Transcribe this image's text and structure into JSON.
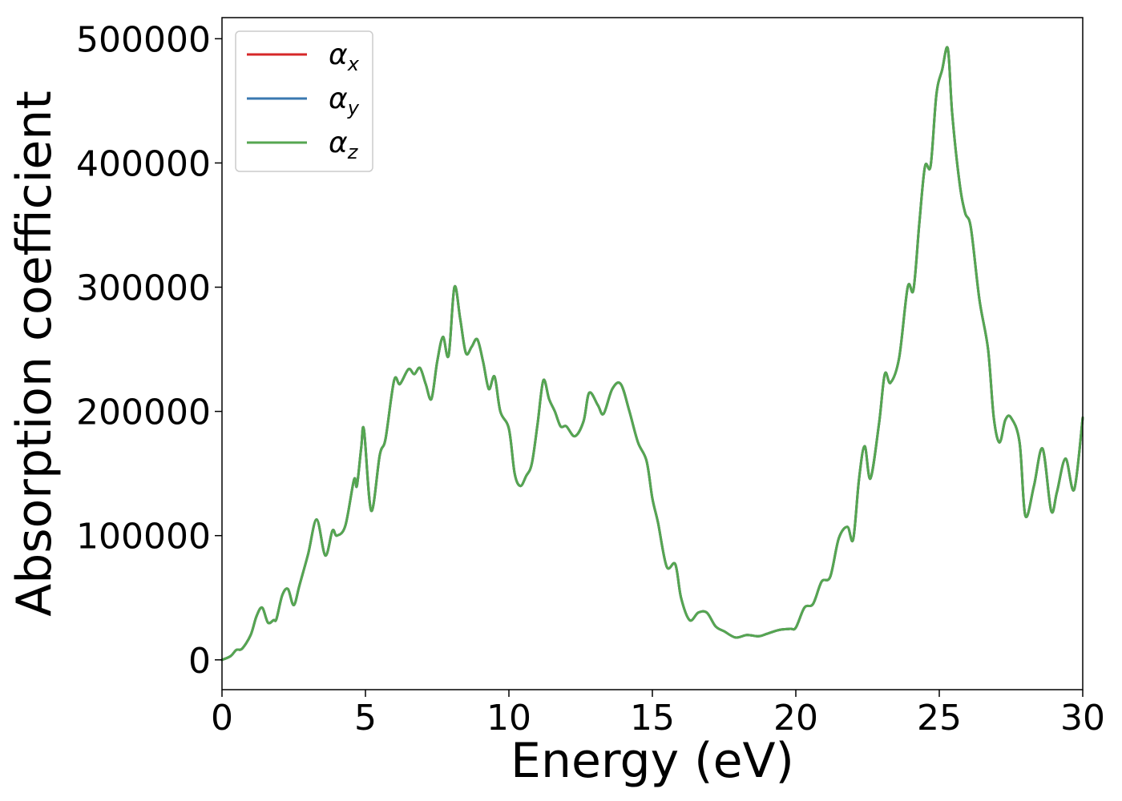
{
  "chart_data": {
    "type": "line",
    "title": "",
    "xlabel": "Energy (eV)",
    "ylabel": "Absorption coefficient",
    "xlim": [
      0,
      30
    ],
    "ylim": [
      -24000,
      517000
    ],
    "x_ticks": [
      "0",
      "5",
      "10",
      "15",
      "20",
      "25",
      "30"
    ],
    "y_ticks": [
      "0",
      "100000",
      "200000",
      "300000",
      "400000",
      "500000"
    ],
    "grid": false,
    "legend_position": "top-left",
    "colors": {
      "alpha_x": "#d62728",
      "alpha_y": "#3a78b0",
      "alpha_z": "#55a651"
    },
    "legend": [
      {
        "base": "α",
        "sub": "x",
        "color": "#d62728"
      },
      {
        "base": "α",
        "sub": "y",
        "color": "#3a78b0"
      },
      {
        "base": "α",
        "sub": "z",
        "color": "#55a651"
      }
    ],
    "x": [
      0,
      0.3,
      0.5,
      0.7,
      1.0,
      1.2,
      1.4,
      1.6,
      1.8,
      1.9,
      2.1,
      2.3,
      2.5,
      2.7,
      3.0,
      3.3,
      3.6,
      3.85,
      4.0,
      4.3,
      4.6,
      4.7,
      4.85,
      4.95,
      5.2,
      5.5,
      5.7,
      6.0,
      6.2,
      6.5,
      6.7,
      6.9,
      7.1,
      7.3,
      7.5,
      7.7,
      7.9,
      8.1,
      8.3,
      8.5,
      8.7,
      8.9,
      9.1,
      9.3,
      9.5,
      9.7,
      10.0,
      10.2,
      10.4,
      10.6,
      10.8,
      11.0,
      11.2,
      11.4,
      11.6,
      11.8,
      12.0,
      12.3,
      12.6,
      12.8,
      13.1,
      13.3,
      13.6,
      13.9,
      14.2,
      14.5,
      14.8,
      15.0,
      15.2,
      15.5,
      15.8,
      16.0,
      16.3,
      16.6,
      16.9,
      17.2,
      17.5,
      17.9,
      18.3,
      18.7,
      19.0,
      19.4,
      19.8,
      20.0,
      20.3,
      20.6,
      20.9,
      21.2,
      21.5,
      21.8,
      22.0,
      22.2,
      22.4,
      22.6,
      22.9,
      23.1,
      23.3,
      23.6,
      23.9,
      24.1,
      24.3,
      24.5,
      24.7,
      24.9,
      25.1,
      25.3,
      25.45,
      25.7,
      25.9,
      26.1,
      26.4,
      26.7,
      26.9,
      27.1,
      27.3,
      27.5,
      27.8,
      28.0,
      28.3,
      28.6,
      28.9,
      29.1,
      29.4,
      29.7,
      30.0
    ],
    "series": [
      {
        "name": "α_x",
        "values": [
          0,
          3000,
          8000,
          9000,
          20000,
          35000,
          42000,
          30000,
          32000,
          33000,
          52000,
          57000,
          44000,
          60000,
          85000,
          113000,
          84000,
          104000,
          100000,
          108000,
          145000,
          140000,
          170000,
          185000,
          120000,
          165000,
          178000,
          225000,
          222000,
          234000,
          230000,
          235000,
          222000,
          210000,
          240000,
          260000,
          245000,
          300000,
          275000,
          247000,
          252000,
          258000,
          240000,
          218000,
          228000,
          200000,
          186000,
          150000,
          140000,
          148000,
          158000,
          190000,
          225000,
          210000,
          200000,
          188000,
          188000,
          180000,
          192000,
          215000,
          205000,
          198000,
          218000,
          222000,
          200000,
          175000,
          160000,
          130000,
          110000,
          75000,
          77000,
          50000,
          32000,
          38000,
          38000,
          27000,
          23000,
          18000,
          20000,
          19000,
          21000,
          24000,
          25000,
          26000,
          42000,
          45000,
          63000,
          67000,
          98000,
          107000,
          97000,
          145000,
          172000,
          146000,
          190000,
          230000,
          223000,
          243000,
          300000,
          298000,
          350000,
          397000,
          398000,
          455000,
          475000,
          492000,
          440000,
          385000,
          360000,
          348000,
          290000,
          250000,
          195000,
          175000,
          193000,
          195000,
          175000,
          116000,
          140000,
          170000,
          120000,
          135000,
          162000,
          137000,
          195000
        ]
      },
      {
        "name": "α_y",
        "values": [
          0,
          3000,
          8000,
          9000,
          20000,
          35000,
          42000,
          30000,
          32000,
          33000,
          52000,
          57000,
          44000,
          60000,
          85000,
          113000,
          84000,
          104000,
          100000,
          108000,
          145000,
          140000,
          170000,
          185000,
          120000,
          165000,
          178000,
          225000,
          222000,
          234000,
          230000,
          235000,
          222000,
          210000,
          240000,
          260000,
          245000,
          300000,
          275000,
          247000,
          252000,
          258000,
          240000,
          218000,
          228000,
          200000,
          186000,
          150000,
          140000,
          148000,
          158000,
          190000,
          225000,
          210000,
          200000,
          188000,
          188000,
          180000,
          192000,
          215000,
          205000,
          198000,
          218000,
          222000,
          200000,
          175000,
          160000,
          130000,
          110000,
          75000,
          77000,
          50000,
          32000,
          38000,
          38000,
          27000,
          23000,
          18000,
          20000,
          19000,
          21000,
          24000,
          25000,
          26000,
          42000,
          45000,
          63000,
          67000,
          98000,
          107000,
          97000,
          145000,
          172000,
          146000,
          190000,
          230000,
          223000,
          243000,
          300000,
          298000,
          350000,
          397000,
          398000,
          455000,
          475000,
          492000,
          440000,
          385000,
          360000,
          348000,
          290000,
          250000,
          195000,
          175000,
          193000,
          195000,
          175000,
          116000,
          140000,
          170000,
          120000,
          135000,
          162000,
          137000,
          195000
        ]
      },
      {
        "name": "α_z",
        "values": [
          0,
          3000,
          8000,
          9000,
          20000,
          35000,
          42000,
          30000,
          32000,
          33000,
          52000,
          57000,
          44000,
          60000,
          85000,
          113000,
          84000,
          104000,
          100000,
          108000,
          145000,
          140000,
          170000,
          185000,
          120000,
          165000,
          178000,
          225000,
          222000,
          234000,
          230000,
          235000,
          222000,
          210000,
          240000,
          260000,
          245000,
          300000,
          275000,
          247000,
          252000,
          258000,
          240000,
          218000,
          228000,
          200000,
          186000,
          150000,
          140000,
          148000,
          158000,
          190000,
          225000,
          210000,
          200000,
          188000,
          188000,
          180000,
          192000,
          215000,
          205000,
          198000,
          218000,
          222000,
          200000,
          175000,
          160000,
          130000,
          110000,
          75000,
          77000,
          50000,
          32000,
          38000,
          38000,
          27000,
          23000,
          18000,
          20000,
          19000,
          21000,
          24000,
          25000,
          26000,
          42000,
          45000,
          63000,
          67000,
          98000,
          107000,
          97000,
          145000,
          172000,
          146000,
          190000,
          230000,
          223000,
          243000,
          300000,
          298000,
          350000,
          397000,
          398000,
          455000,
          475000,
          492000,
          440000,
          385000,
          360000,
          348000,
          290000,
          250000,
          195000,
          175000,
          193000,
          195000,
          175000,
          116000,
          140000,
          170000,
          120000,
          135000,
          162000,
          137000,
          195000
        ]
      }
    ]
  }
}
